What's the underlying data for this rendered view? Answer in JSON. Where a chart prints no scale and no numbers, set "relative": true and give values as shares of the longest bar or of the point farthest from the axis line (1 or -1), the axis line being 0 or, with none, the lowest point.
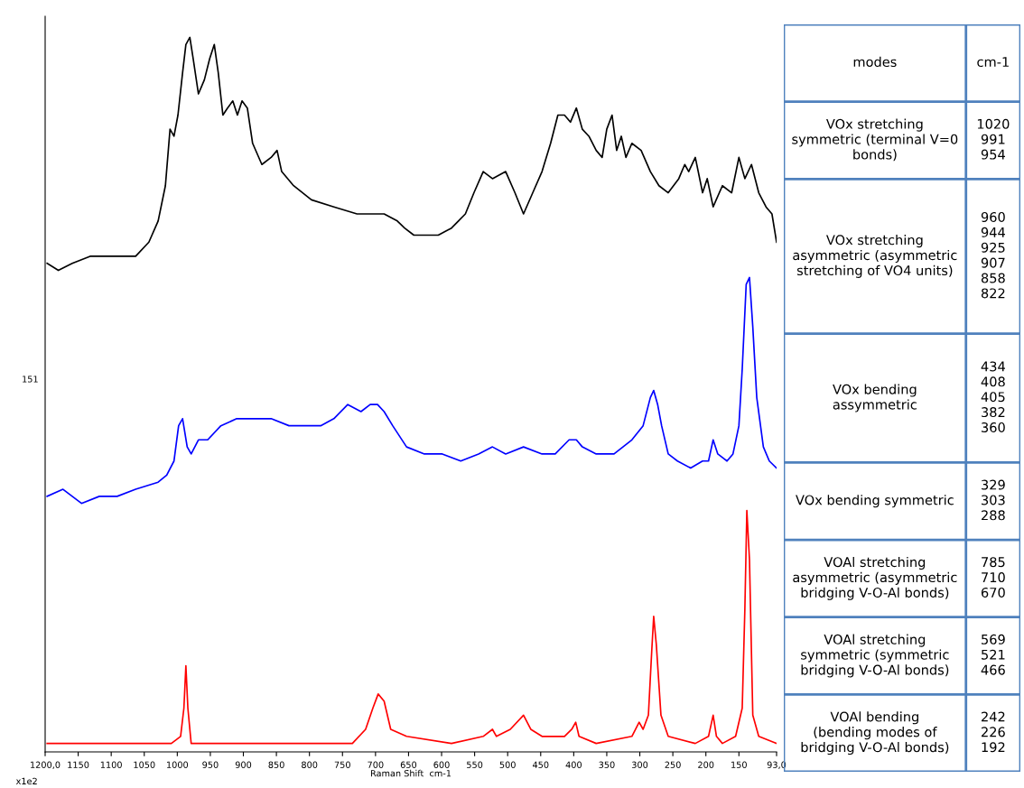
{
  "chart_data": [
    {
      "type": "line",
      "relative": true,
      "xlabel": "Raman Shift  cm-1",
      "ylabel": "151",
      "annotations": [
        "x1e2"
      ],
      "xlim": [
        1200,
        93
      ],
      "xticks": [
        {
          "value": 1200,
          "label": "1200,0"
        },
        1150,
        1100,
        1050,
        1000,
        950,
        900,
        850,
        800,
        750,
        700,
        650,
        600,
        550,
        500,
        450,
        400,
        350,
        300,
        250,
        200,
        150,
        {
          "value": 93,
          "label": "93,0"
        }
      ],
      "grid": false,
      "legend": false,
      "marker": "none",
      "line_style": "solid",
      "tick_labels": "x",
      "series": [
        {
          "color": "#000000",
          "x": [
            1197,
            1180,
            1159,
            1132,
            1104,
            1063,
            1043,
            1029,
            1018,
            1011,
            1005,
            999,
            992,
            987,
            981,
            976,
            968,
            959,
            951,
            944,
            938,
            931,
            924,
            916,
            909,
            902,
            894,
            886,
            872,
            858,
            849,
            842,
            824,
            797,
            763,
            728,
            708,
            687,
            667,
            656,
            642,
            626,
            605,
            585,
            564,
            551,
            537,
            523,
            503,
            489,
            476,
            462,
            448,
            435,
            424,
            414,
            405,
            396,
            387,
            377,
            366,
            357,
            350,
            342,
            335,
            328,
            321,
            312,
            298,
            284,
            271,
            257,
            241,
            232,
            226,
            216,
            205,
            198,
            189,
            175,
            161,
            150,
            141,
            131,
            120,
            109,
            100,
            93
          ],
          "values": [
            0.68,
            0.67,
            0.68,
            0.69,
            0.69,
            0.69,
            0.71,
            0.74,
            0.79,
            0.87,
            0.86,
            0.89,
            0.95,
            0.99,
            1.0,
            0.97,
            0.92,
            0.94,
            0.97,
            0.99,
            0.95,
            0.89,
            0.9,
            0.91,
            0.89,
            0.91,
            0.9,
            0.85,
            0.82,
            0.83,
            0.84,
            0.81,
            0.79,
            0.77,
            0.76,
            0.75,
            0.75,
            0.75,
            0.74,
            0.73,
            0.72,
            0.72,
            0.72,
            0.73,
            0.75,
            0.78,
            0.81,
            0.8,
            0.81,
            0.78,
            0.75,
            0.78,
            0.81,
            0.85,
            0.89,
            0.89,
            0.88,
            0.9,
            0.87,
            0.86,
            0.84,
            0.83,
            0.87,
            0.89,
            0.84,
            0.86,
            0.83,
            0.85,
            0.84,
            0.81,
            0.79,
            0.78,
            0.8,
            0.82,
            0.81,
            0.83,
            0.78,
            0.8,
            0.76,
            0.79,
            0.78,
            0.83,
            0.8,
            0.82,
            0.78,
            0.76,
            0.75,
            0.71
          ]
        },
        {
          "color": "#0000ff",
          "x": [
            1197,
            1173,
            1145,
            1118,
            1091,
            1063,
            1029,
            1016,
            1005,
            998,
            992,
            985,
            979,
            968,
            954,
            934,
            910,
            886,
            858,
            831,
            804,
            783,
            763,
            742,
            722,
            708,
            697,
            687,
            674,
            653,
            626,
            599,
            571,
            544,
            523,
            503,
            476,
            448,
            428,
            407,
            396,
            387,
            366,
            339,
            312,
            295,
            284,
            279,
            273,
            267,
            257,
            243,
            223,
            205,
            196,
            189,
            182,
            168,
            159,
            150,
            145,
            139,
            134,
            129,
            123,
            113,
            104,
            93
          ],
          "values": [
            0.35,
            0.36,
            0.34,
            0.35,
            0.35,
            0.36,
            0.37,
            0.38,
            0.4,
            0.45,
            0.46,
            0.42,
            0.41,
            0.43,
            0.43,
            0.45,
            0.46,
            0.46,
            0.46,
            0.45,
            0.45,
            0.45,
            0.46,
            0.48,
            0.47,
            0.48,
            0.48,
            0.47,
            0.45,
            0.42,
            0.41,
            0.41,
            0.4,
            0.41,
            0.42,
            0.41,
            0.42,
            0.41,
            0.41,
            0.43,
            0.43,
            0.42,
            0.41,
            0.41,
            0.43,
            0.45,
            0.49,
            0.5,
            0.48,
            0.45,
            0.41,
            0.4,
            0.39,
            0.4,
            0.4,
            0.43,
            0.41,
            0.4,
            0.41,
            0.45,
            0.53,
            0.65,
            0.66,
            0.59,
            0.49,
            0.42,
            0.4,
            0.39
          ]
        },
        {
          "color": "#ff0000",
          "x": [
            1197,
            1132,
            1063,
            1009,
            995,
            990,
            987,
            984,
            979,
            913,
            831,
            735,
            715,
            704,
            696,
            687,
            677,
            653,
            585,
            537,
            523,
            517,
            496,
            476,
            465,
            448,
            414,
            403,
            397,
            392,
            366,
            312,
            301,
            295,
            287,
            282,
            279,
            275,
            268,
            257,
            216,
            196,
            189,
            184,
            175,
            155,
            145,
            141,
            138,
            134,
            129,
            120,
            93
          ],
          "values": [
            0.0,
            0.0,
            0.0,
            0.0,
            0.01,
            0.05,
            0.11,
            0.05,
            0.0,
            0.0,
            0.0,
            0.0,
            0.02,
            0.05,
            0.07,
            0.06,
            0.02,
            0.01,
            0.0,
            0.01,
            0.02,
            0.01,
            0.02,
            0.04,
            0.02,
            0.01,
            0.01,
            0.02,
            0.03,
            0.01,
            0.0,
            0.01,
            0.03,
            0.02,
            0.04,
            0.13,
            0.18,
            0.14,
            0.04,
            0.01,
            0.0,
            0.01,
            0.04,
            0.01,
            0.0,
            0.01,
            0.05,
            0.19,
            0.33,
            0.26,
            0.04,
            0.01,
            0.0
          ]
        }
      ]
    },
    {
      "type": "other",
      "annotations": [
        "modes",
        "cm-1",
        "VOx stretching\nsymmetric (terminal V=0\nbonds)",
        "1020\n991\n954",
        "VOx stretching\nasymmetric (asymmetric\nstretching of VO4 units)",
        "960\n944\n925\n907\n858\n822",
        "VOx bending\nassymmetric",
        "434\n408\n405\n382\n360",
        "VOx bending symmetric",
        "329\n303\n288",
        "VOAl stretching\nasymmetric (asymmetric\nbridging V-O-Al bonds)",
        "785\n710\n670",
        "VOAl stretching\nsymmetric (symmetric\nbridging V-O-Al bonds)",
        "569\n521\n466",
        "VOAl bending\n(bending modes of\nbridging V-O-Al bonds)",
        "242\n226\n192"
      ]
    }
  ]
}
